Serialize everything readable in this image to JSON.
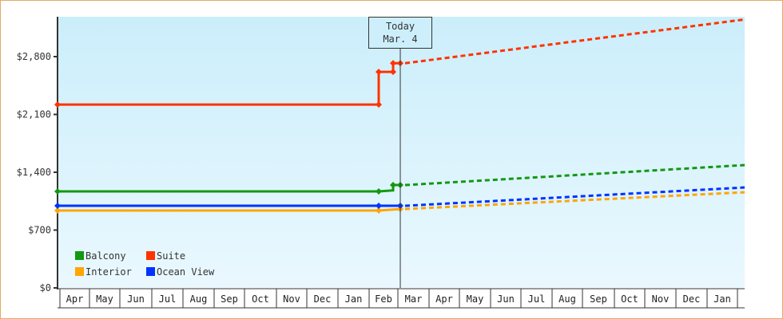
{
  "chart_data": {
    "type": "line",
    "title": "",
    "xlabel": "",
    "ylabel": "",
    "ylim": [
      0,
      3300
    ],
    "yticks": [
      "$0",
      "$700",
      "$1,400",
      "$2,100",
      "$2,800"
    ],
    "ytick_values": [
      0,
      700,
      1400,
      2100,
      2800
    ],
    "x_months": [
      "Apr",
      "May",
      "Jun",
      "Jul",
      "Aug",
      "Sep",
      "Oct",
      "Nov",
      "Dec",
      "Jan",
      "Feb",
      "Mar",
      "Apr",
      "May",
      "Jun",
      "Jul",
      "Aug",
      "Sep",
      "Oct",
      "Nov",
      "Dec",
      "Jan"
    ],
    "today_marker": {
      "line1": "Today",
      "line2": "Mar. 4"
    },
    "legend": [
      {
        "name": "Balcony",
        "color": "#119911"
      },
      {
        "name": "Suite",
        "color": "#ff3300"
      },
      {
        "name": "Interior",
        "color": "#ffa500"
      },
      {
        "name": "Ocean View",
        "color": "#0033ff"
      }
    ],
    "series": [
      {
        "name": "Suite",
        "color": "#ff3300",
        "historical": [
          [
            "Apr",
            2220
          ],
          [
            "Feb (early)",
            2220
          ],
          [
            "Feb (early)",
            2615
          ],
          [
            "Feb (late)",
            2615
          ],
          [
            "Feb (late)",
            2720
          ],
          [
            "Mar 4",
            2720
          ]
        ],
        "projected": [
          [
            "Mar 4",
            2720
          ],
          [
            "Jan (end)",
            3250
          ]
        ]
      },
      {
        "name": "Balcony",
        "color": "#119911",
        "historical": [
          [
            "Apr",
            1168
          ],
          [
            "Feb (early)",
            1168
          ],
          [
            "Feb (late)",
            1180
          ],
          [
            "Feb (late)",
            1245
          ],
          [
            "Mar 4",
            1245
          ]
        ],
        "projected": [
          [
            "Mar 4",
            1245
          ],
          [
            "Jan (end)",
            1487
          ]
        ]
      },
      {
        "name": "Ocean View",
        "color": "#0033ff",
        "historical": [
          [
            "Apr",
            994
          ],
          [
            "Feb (early)",
            994
          ],
          [
            "Mar 4",
            994
          ]
        ],
        "projected": [
          [
            "Mar 4",
            994
          ],
          [
            "Jan (end)",
            1216
          ]
        ]
      },
      {
        "name": "Interior",
        "color": "#ffa500",
        "historical": [
          [
            "Apr",
            936
          ],
          [
            "Feb (early)",
            936
          ],
          [
            "Mar 4",
            955
          ]
        ],
        "projected": [
          [
            "Mar 4",
            955
          ],
          [
            "Jan (end)",
            1158
          ]
        ]
      }
    ],
    "grid": false,
    "legend_position": "lower-left inside plot"
  }
}
